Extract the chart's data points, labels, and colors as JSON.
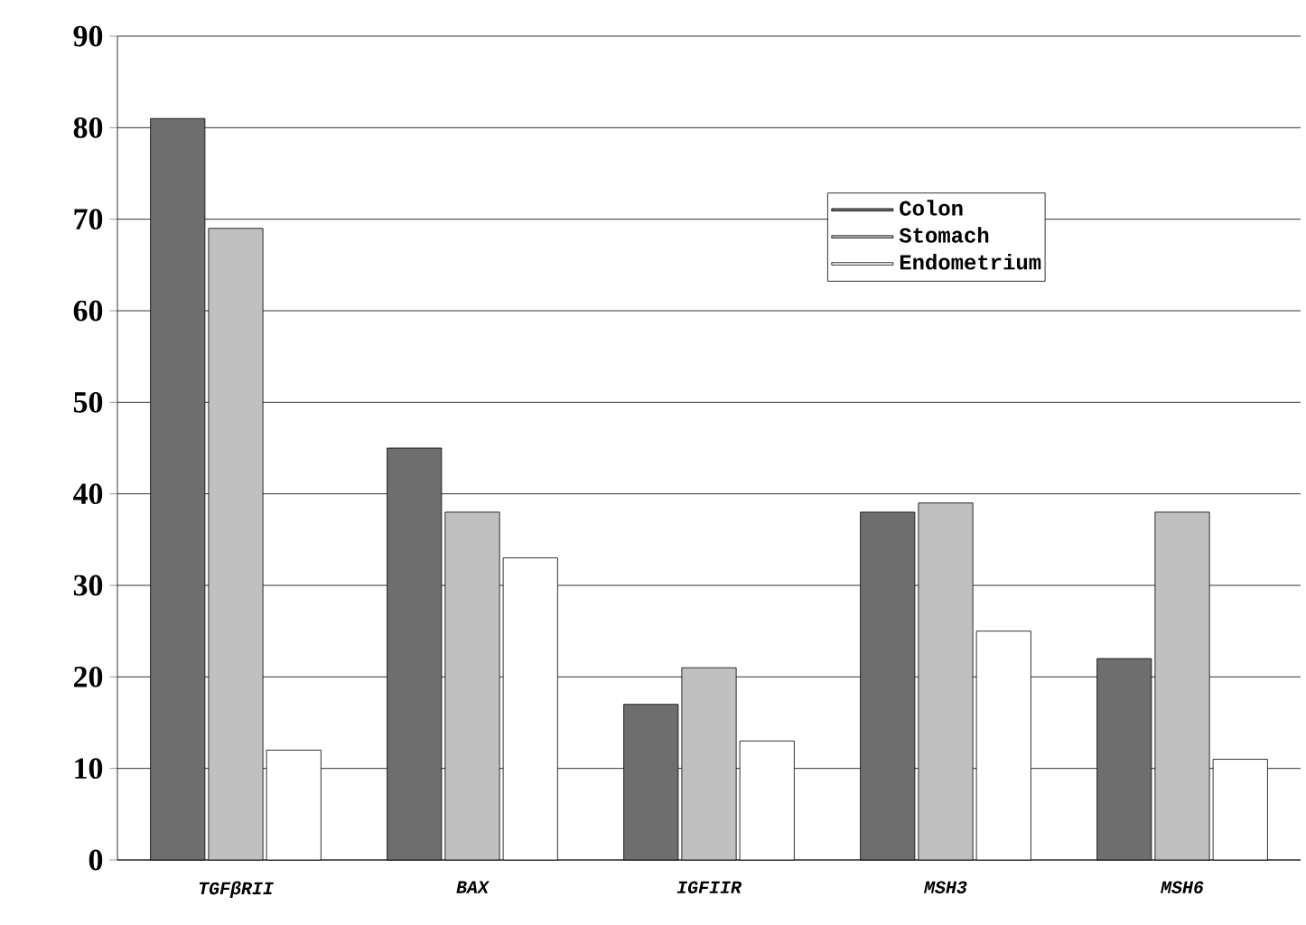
{
  "chart_data": {
    "type": "bar",
    "categories": [
      "TGFβRII",
      "BAX",
      "IGFIIR",
      "MSH3",
      "MSH6"
    ],
    "series": [
      {
        "name": "Colon",
        "color": "#6e6e6e",
        "values": [
          81,
          45,
          17,
          38,
          22
        ]
      },
      {
        "name": "Stomach",
        "color": "#c0c0c0",
        "values": [
          69,
          38,
          21,
          39,
          38
        ]
      },
      {
        "name": "Endometrium",
        "color": "#ffffff",
        "values": [
          12,
          33,
          13,
          25,
          11
        ]
      }
    ],
    "ylim": [
      0,
      90
    ],
    "yticks": [
      0,
      10,
      20,
      30,
      40,
      50,
      60,
      70,
      80,
      90
    ],
    "grid": "y",
    "legend": "top right"
  }
}
